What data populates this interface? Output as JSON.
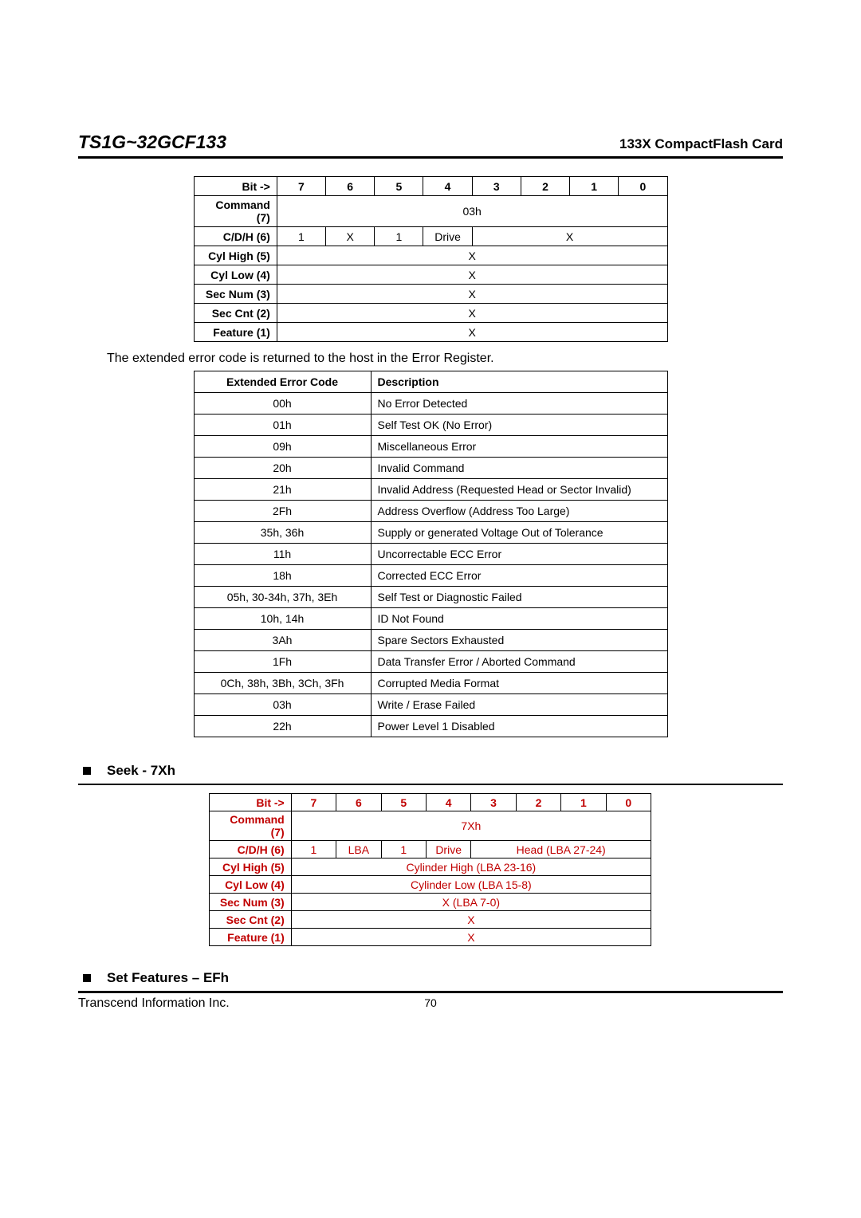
{
  "header": {
    "model": "TS1G~32GCF133",
    "subtitle": "133X CompactFlash Card"
  },
  "colors": {
    "text": "#000000",
    "accent_red": "#c00000",
    "background": "#ffffff"
  },
  "reg_table": {
    "bit_header": "Bit ->",
    "bits": [
      "7",
      "6",
      "5",
      "4",
      "3",
      "2",
      "1",
      "0"
    ],
    "rows": [
      {
        "label": "Command (7)",
        "cells": [
          {
            "span": 8,
            "text": "03h"
          }
        ]
      },
      {
        "label": "C/D/H (6)",
        "cells": [
          {
            "span": 1,
            "text": "1"
          },
          {
            "span": 1,
            "text": "X"
          },
          {
            "span": 1,
            "text": "1"
          },
          {
            "span": 1,
            "text": "Drive"
          },
          {
            "span": 4,
            "text": "X"
          }
        ]
      },
      {
        "label": "Cyl High (5)",
        "cells": [
          {
            "span": 8,
            "text": "X"
          }
        ]
      },
      {
        "label": "Cyl Low (4)",
        "cells": [
          {
            "span": 8,
            "text": "X"
          }
        ]
      },
      {
        "label": "Sec Num (3)",
        "cells": [
          {
            "span": 8,
            "text": "X"
          }
        ]
      },
      {
        "label": "Sec Cnt (2)",
        "cells": [
          {
            "span": 8,
            "text": "X"
          }
        ]
      },
      {
        "label": "Feature (1)",
        "cells": [
          {
            "span": 8,
            "text": "X"
          }
        ]
      }
    ]
  },
  "intro_text": "The extended error code is returned to the host in the Error Register.",
  "err_table": {
    "columns": [
      "Extended Error Code",
      "Description"
    ],
    "rows": [
      [
        "00h",
        "No Error Detected"
      ],
      [
        "01h",
        "Self Test OK (No Error)"
      ],
      [
        "09h",
        "Miscellaneous Error"
      ],
      [
        "20h",
        "Invalid Command"
      ],
      [
        "21h",
        "Invalid Address (Requested Head or Sector Invalid)"
      ],
      [
        "2Fh",
        "Address Overflow (Address Too Large)"
      ],
      [
        "35h, 36h",
        "Supply or generated Voltage Out of Tolerance"
      ],
      [
        "11h",
        "Uncorrectable ECC Error"
      ],
      [
        "18h",
        "Corrected ECC Error"
      ],
      [
        "05h, 30-34h, 37h, 3Eh",
        "Self Test or Diagnostic Failed"
      ],
      [
        "10h, 14h",
        "ID Not Found"
      ],
      [
        "3Ah",
        "Spare Sectors Exhausted"
      ],
      [
        "1Fh",
        "Data Transfer Error / Aborted Command"
      ],
      [
        "0Ch, 38h, 3Bh, 3Ch, 3Fh",
        "Corrupted Media Format"
      ],
      [
        "03h",
        "Write / Erase Failed"
      ],
      [
        "22h",
        "Power Level 1 Disabled"
      ]
    ]
  },
  "seek_section": {
    "title": "Seek - 7Xh",
    "bit_header": "Bit ->",
    "bits": [
      "7",
      "6",
      "5",
      "4",
      "3",
      "2",
      "1",
      "0"
    ],
    "rows": [
      {
        "label": "Command (7)",
        "cells": [
          {
            "span": 8,
            "text": "7Xh"
          }
        ]
      },
      {
        "label": "C/D/H (6)",
        "cells": [
          {
            "span": 1,
            "text": "1"
          },
          {
            "span": 1,
            "text": "LBA"
          },
          {
            "span": 1,
            "text": "1"
          },
          {
            "span": 1,
            "text": "Drive"
          },
          {
            "span": 4,
            "text": "Head (LBA 27-24)"
          }
        ]
      },
      {
        "label": "Cyl High (5)",
        "cells": [
          {
            "span": 8,
            "text": "Cylinder High (LBA 23-16)"
          }
        ]
      },
      {
        "label": "Cyl Low (4)",
        "cells": [
          {
            "span": 8,
            "text": "Cylinder Low (LBA 15-8)"
          }
        ]
      },
      {
        "label": "Sec Num (3)",
        "cells": [
          {
            "span": 8,
            "text": "X (LBA 7-0)"
          }
        ]
      },
      {
        "label": "Sec Cnt (2)",
        "cells": [
          {
            "span": 8,
            "text": "X"
          }
        ]
      },
      {
        "label": "Feature (1)",
        "cells": [
          {
            "span": 8,
            "text": "X"
          }
        ]
      }
    ]
  },
  "setfeatures_section": {
    "title": "Set Features – EFh"
  },
  "footer": {
    "company": "Transcend Information Inc.",
    "page": "70"
  }
}
